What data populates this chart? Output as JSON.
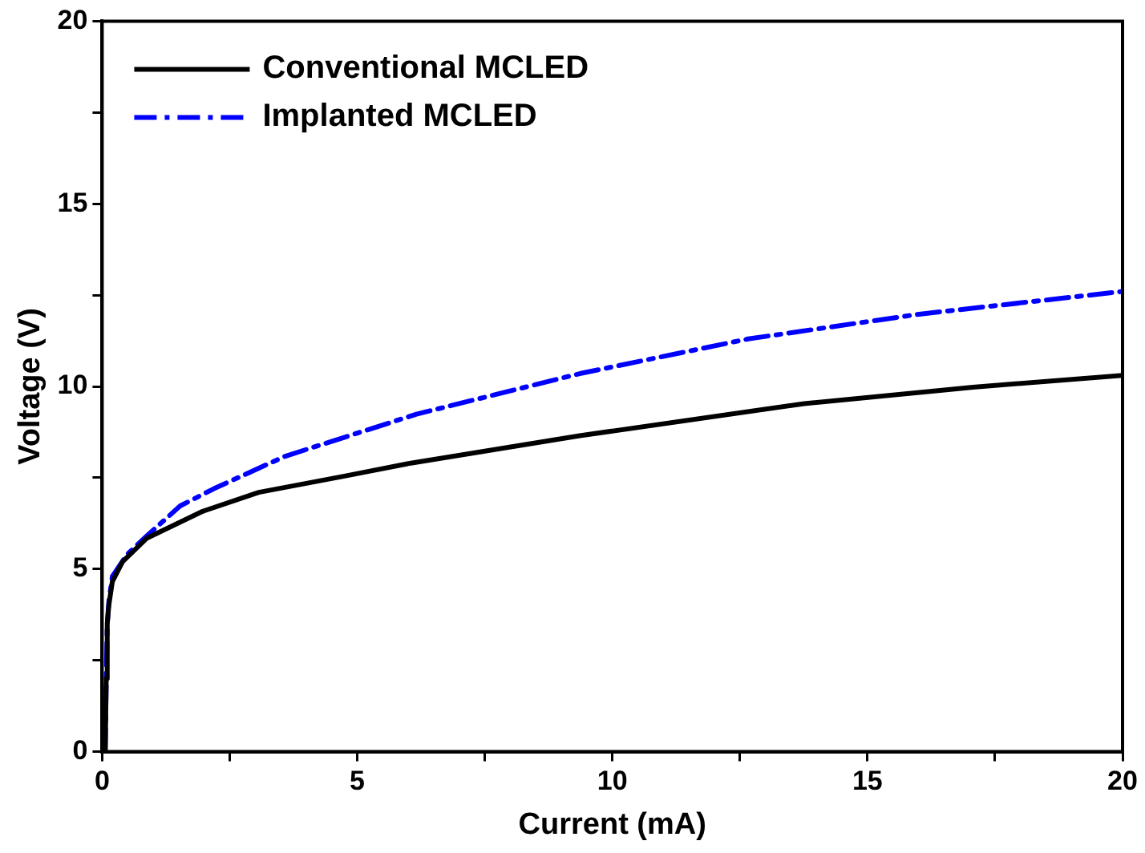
{
  "chart_data": {
    "type": "line",
    "xlabel": "Current (mA)",
    "ylabel": "Voltage (V)",
    "xlim": [
      0,
      20
    ],
    "ylim": [
      0,
      20
    ],
    "xticks": [
      0,
      {
        "value": 2.5,
        "label": null
      },
      5,
      {
        "value": 7.5,
        "label": null
      },
      10,
      {
        "value": 12.5,
        "label": null
      },
      15,
      {
        "value": 17.5,
        "label": null
      },
      20
    ],
    "yticks": [
      0,
      {
        "value": 2.5,
        "label": null
      },
      5,
      {
        "value": 7.5,
        "label": null
      },
      10,
      {
        "value": 12.5,
        "label": null
      },
      15,
      {
        "value": 17.5,
        "label": null
      },
      20
    ],
    "grid": false,
    "legend": "top left",
    "marker": "none",
    "series": [
      {
        "name": "Conventional MCLED",
        "color": "#000000",
        "line_style": "solid",
        "x": [
          0.06,
          0.08,
          0.1,
          0.13,
          0.2,
          0.4,
          0.87,
          1.97,
          3.07,
          4.73,
          6.05,
          9.36,
          13.76,
          17.07,
          20
        ],
        "values": [
          0,
          2,
          3.5,
          4.0,
          4.66,
          5.2,
          5.84,
          6.58,
          7.1,
          7.54,
          7.9,
          8.65,
          9.53,
          9.98,
          10.3
        ]
      },
      {
        "name": "Implanted MCLED",
        "color": "#0000ff",
        "line_style": "dashdot",
        "x": [
          0.06,
          0.08,
          0.1,
          0.13,
          0.2,
          0.49,
          0.87,
          1.53,
          2.19,
          3.57,
          6.16,
          9.36,
          12.66,
          15.97,
          20
        ],
        "values": [
          0,
          2,
          3.5,
          4.1,
          4.8,
          5.4,
          5.9,
          6.73,
          7.2,
          8.08,
          9.24,
          10.35,
          11.3,
          11.97,
          12.6
        ]
      }
    ]
  }
}
